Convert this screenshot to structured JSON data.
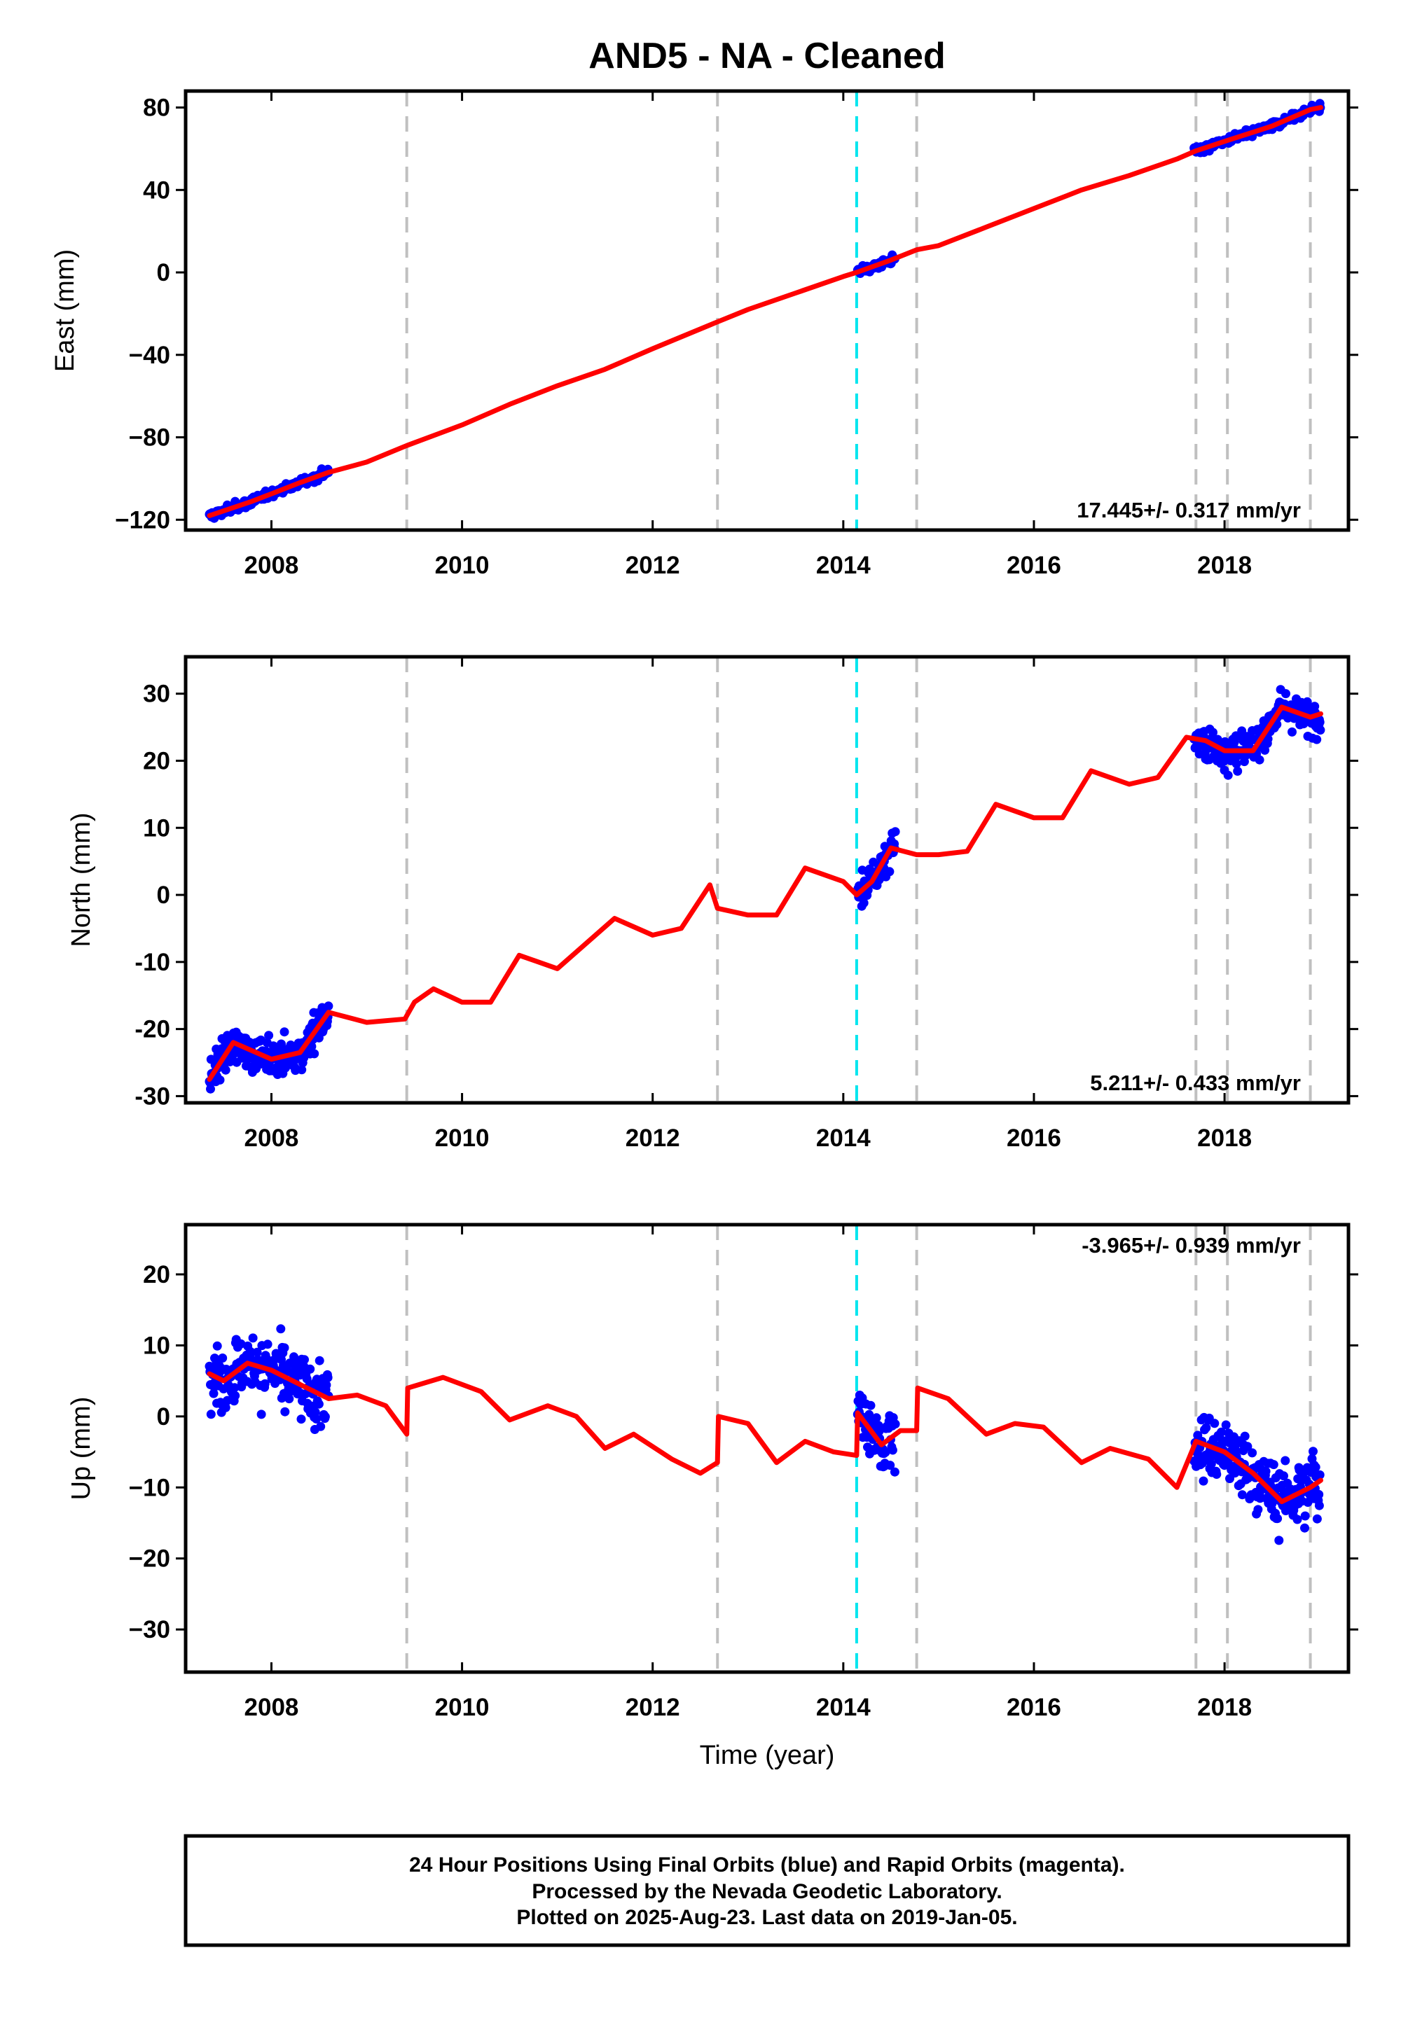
{
  "chart_data": {
    "type": "scatter",
    "title": "AND5  - NA - Cleaned",
    "xlabel": "Time (year)",
    "x_ticks": [
      "2008",
      "2010",
      "2012",
      "2014",
      "2016",
      "2018"
    ],
    "xlim": [
      2007.1,
      2019.3
    ],
    "colors": {
      "points": "#0000ff",
      "model": "#ff0000",
      "gray_break": "#c0c0c0",
      "cyan_break": "#00e5ee"
    },
    "breaks_gray": [
      2009.42,
      2012.68,
      2014.77,
      2017.7,
      2018.03,
      2018.9
    ],
    "breaks_cyan": [
      2014.14
    ],
    "data_segments": [
      [
        2007.35,
        2008.6
      ],
      [
        2014.15,
        2014.55
      ],
      [
        2017.68,
        2019.01
      ]
    ],
    "panels": [
      {
        "ylabel": "East (mm)",
        "ylim": [
          -125,
          88
        ],
        "y_ticks": [
          "80",
          "40",
          "0",
          "−40",
          "−80",
          "−120"
        ],
        "y_tick_values": [
          80,
          40,
          0,
          -40,
          -80,
          -120
        ],
        "rate": "17.445+/- 0.317 mm/yr",
        "rate_position": "bottom-right",
        "model": {
          "x": [
            2007.35,
            2007.8,
            2008.3,
            2008.6,
            2009.0,
            2009.42,
            2010.0,
            2010.5,
            2011.0,
            2011.5,
            2012.0,
            2012.68,
            2013.0,
            2013.5,
            2014.0,
            2014.14,
            2014.5,
            2014.77,
            2015.0,
            2015.5,
            2016.0,
            2016.5,
            2017.0,
            2017.5,
            2017.7,
            2018.03,
            2018.5,
            2018.9,
            2019.01
          ],
          "y": [
            -118,
            -111,
            -102,
            -97,
            -92,
            -84,
            -74,
            -64,
            -55,
            -47,
            -37,
            -24,
            -18,
            -10,
            -2,
            0,
            6,
            11,
            13,
            22,
            31,
            40,
            47,
            55,
            59,
            64,
            71,
            79,
            80
          ]
        },
        "points_trend": {
          "x": [
            2007.35,
            2019.01
          ],
          "y": [
            -118,
            80
          ],
          "spread": 2.5
        }
      },
      {
        "ylabel": "North (mm)",
        "ylim": [
          -31,
          35.5
        ],
        "y_ticks": [
          "30",
          "20",
          "10",
          "0",
          "-10",
          "-20",
          "-30"
        ],
        "y_tick_values": [
          30,
          20,
          10,
          0,
          -10,
          -20,
          -30
        ],
        "rate": "5.211+/- 0.433 mm/yr",
        "rate_position": "bottom-right",
        "model": {
          "x": [
            2007.35,
            2007.6,
            2008.0,
            2008.3,
            2008.6,
            2009.0,
            2009.4,
            2009.5,
            2009.7,
            2010.0,
            2010.3,
            2010.6,
            2011.0,
            2011.6,
            2012.0,
            2012.3,
            2012.6,
            2012.68,
            2013.0,
            2013.3,
            2013.6,
            2014.0,
            2014.14,
            2014.3,
            2014.5,
            2014.77,
            2015.0,
            2015.3,
            2015.6,
            2016.0,
            2016.3,
            2016.6,
            2017.0,
            2017.3,
            2017.6,
            2017.8,
            2018.0,
            2018.3,
            2018.6,
            2018.9,
            2019.01
          ],
          "y": [
            -27.5,
            -22,
            -24.5,
            -23.5,
            -17.5,
            -19,
            -18.5,
            -16,
            -14,
            -16,
            -16,
            -9,
            -11,
            -3.5,
            -6,
            -5,
            1.5,
            -2,
            -3,
            -3,
            4,
            2,
            0,
            2,
            7,
            6,
            6,
            6.5,
            13.5,
            11.5,
            11.5,
            18.5,
            16.5,
            17.5,
            23.5,
            23,
            21.5,
            21.5,
            28,
            26.5,
            27
          ]
        },
        "points_trend": {
          "x": [
            2007.35,
            2019.01
          ],
          "y": [
            -25,
            27
          ],
          "spread": 3.5
        }
      },
      {
        "ylabel": "Up (mm)",
        "ylim": [
          -36,
          27
        ],
        "y_ticks": [
          "20",
          "10",
          "0",
          "−10",
          "−20",
          "−30"
        ],
        "y_tick_values": [
          20,
          10,
          0,
          -10,
          -20,
          -30
        ],
        "rate": "-3.965+/- 0.939 mm/yr",
        "rate_position": "top-right",
        "model": {
          "x": [
            2007.35,
            2007.5,
            2007.75,
            2008.0,
            2008.3,
            2008.6,
            2008.9,
            2009.2,
            2009.42,
            2009.43,
            2009.8,
            2010.2,
            2010.5,
            2010.9,
            2011.2,
            2011.5,
            2011.8,
            2012.2,
            2012.5,
            2012.68,
            2012.69,
            2013.0,
            2013.3,
            2013.6,
            2013.9,
            2014.14,
            2014.15,
            2014.4,
            2014.6,
            2014.77,
            2014.78,
            2015.1,
            2015.5,
            2015.8,
            2016.1,
            2016.5,
            2016.8,
            2017.2,
            2017.5,
            2017.7,
            2018.0,
            2018.3,
            2018.6,
            2018.9,
            2019.01
          ],
          "y": [
            6,
            5,
            7.5,
            6.5,
            4.5,
            2.5,
            3,
            1.5,
            -2.5,
            4,
            5.5,
            3.5,
            -0.5,
            1.5,
            0,
            -4.5,
            -2.5,
            -6,
            -8,
            -6.5,
            0,
            -1,
            -6.5,
            -3.5,
            -5,
            -5.5,
            0.5,
            -4,
            -2,
            -2,
            4,
            2.5,
            -2.5,
            -1,
            -1.5,
            -6.5,
            -4.5,
            -6,
            -10,
            -3.5,
            -5,
            -8,
            -12,
            -10,
            -9
          ]
        },
        "points_trend": {
          "x": [
            2007.35,
            2019.01
          ],
          "y": [
            6,
            -10
          ],
          "spread": 6
        }
      }
    ]
  },
  "footer": {
    "line1": "24 Hour Positions Using Final Orbits (blue) and Rapid Orbits (magenta).",
    "line2": "Processed by the Nevada Geodetic Laboratory.",
    "line3": "Plotted on 2025-Aug-23. Last data on 2019-Jan-05."
  }
}
